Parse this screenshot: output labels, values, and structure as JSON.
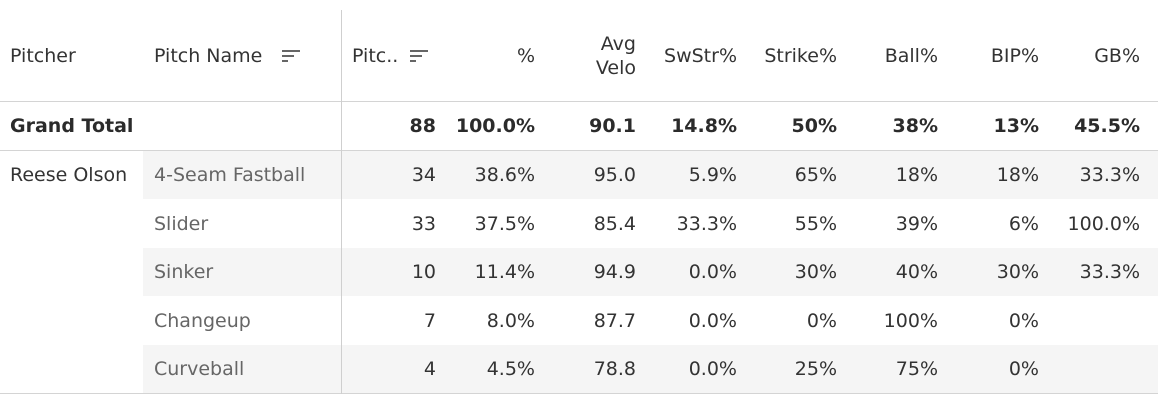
{
  "headers": {
    "pitcher": "Pitcher",
    "pitch_name": "Pitch Name",
    "pitches": "Pitc..",
    "pct": "%",
    "avg_velo_1": "Avg",
    "avg_velo_2": "Velo",
    "swstr": "SwStr%",
    "strike": "Strike%",
    "ball": "Ball%",
    "bip": "BIP%",
    "gb": "GB%"
  },
  "grand_total": {
    "label": "Grand Total",
    "pitches": "88",
    "pct": "100.0%",
    "avg_velo": "90.1",
    "swstr": "14.8%",
    "strike": "50%",
    "ball": "38%",
    "bip": "13%",
    "gb": "45.5%"
  },
  "pitcher": "Reese Olson",
  "rows": [
    {
      "pitch_name": "4-Seam Fastball",
      "pitches": "34",
      "pct": "38.6%",
      "avg_velo": "95.0",
      "swstr": "5.9%",
      "strike": "65%",
      "ball": "18%",
      "bip": "18%",
      "gb": "33.3%"
    },
    {
      "pitch_name": "Slider",
      "pitches": "33",
      "pct": "37.5%",
      "avg_velo": "85.4",
      "swstr": "33.3%",
      "strike": "55%",
      "ball": "39%",
      "bip": "6%",
      "gb": "100.0%"
    },
    {
      "pitch_name": "Sinker",
      "pitches": "10",
      "pct": "11.4%",
      "avg_velo": "94.9",
      "swstr": "0.0%",
      "strike": "30%",
      "ball": "40%",
      "bip": "30%",
      "gb": "33.3%"
    },
    {
      "pitch_name": "Changeup",
      "pitches": "7",
      "pct": "8.0%",
      "avg_velo": "87.7",
      "swstr": "0.0%",
      "strike": "0%",
      "ball": "100%",
      "bip": "0%",
      "gb": ""
    },
    {
      "pitch_name": "Curveball",
      "pitches": "4",
      "pct": "4.5%",
      "avg_velo": "78.8",
      "swstr": "0.0%",
      "strike": "25%",
      "ball": "75%",
      "bip": "0%",
      "gb": ""
    }
  ]
}
